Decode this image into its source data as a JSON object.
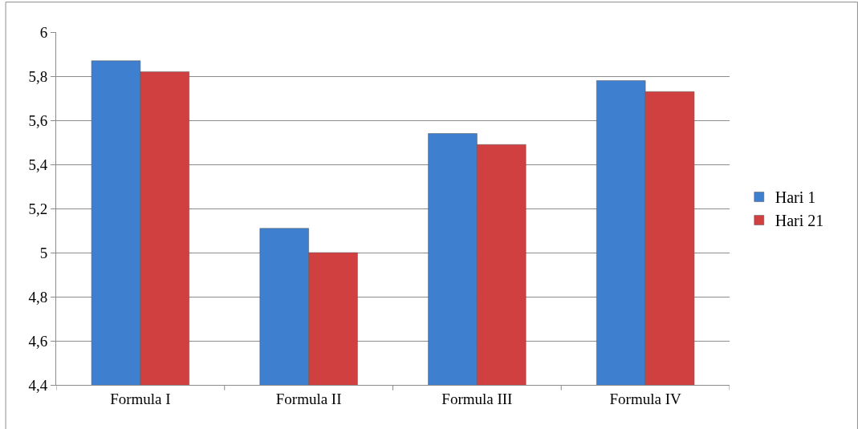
{
  "chart_data": {
    "type": "bar",
    "categories": [
      "Formula I",
      "Formula II",
      "Formula III",
      "Formula IV"
    ],
    "series": [
      {
        "name": "Hari 1",
        "color": "#3f7fcf",
        "values": [
          5.87,
          5.11,
          5.54,
          5.78
        ]
      },
      {
        "name": "Hari 21",
        "color": "#d04040",
        "values": [
          5.82,
          5.0,
          5.49,
          5.73
        ]
      }
    ],
    "ylim": [
      4.4,
      6
    ],
    "yticks": [
      {
        "value": 4.4,
        "label": "4,4"
      },
      {
        "value": 4.6,
        "label": "4,6"
      },
      {
        "value": 4.8,
        "label": "4,8"
      },
      {
        "value": 5,
        "label": "5"
      },
      {
        "value": 5.2,
        "label": "5,2"
      },
      {
        "value": 5.4,
        "label": "5,4"
      },
      {
        "value": 5.6,
        "label": "5,6"
      },
      {
        "value": 5.8,
        "label": "5,8"
      },
      {
        "value": 6,
        "label": "6"
      }
    ],
    "grid": "y",
    "legend": "right"
  }
}
